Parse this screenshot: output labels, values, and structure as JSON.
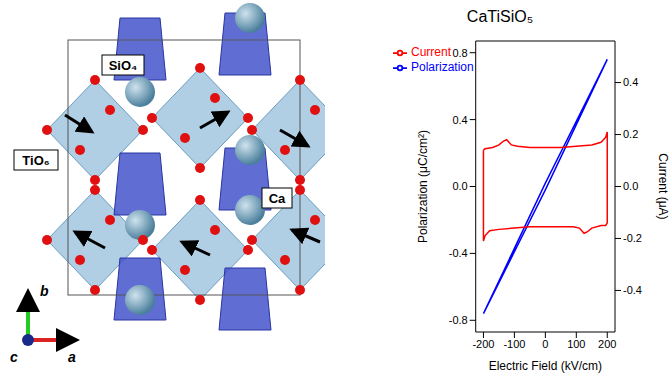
{
  "diagram": {
    "labels": {
      "polyhedra": [
        "SiO₄",
        "TiO₆"
      ],
      "atom": "Ca",
      "axes": [
        "a",
        "b",
        "c"
      ]
    }
  },
  "chart_data": {
    "type": "line",
    "title": "CaTiSiO₅",
    "xlabel": "Electric Field (kV/cm)",
    "ylabel": "Polarization (μC/cm²)",
    "y2label": "Current (μA)",
    "xlim": [
      -225,
      225
    ],
    "xticks": [
      -200,
      -100,
      0,
      100,
      200
    ],
    "ylim": [
      -0.87,
      0.87
    ],
    "yticks": [
      -0.8,
      -0.4,
      {
        "value": 0,
        "label": "0.0"
      },
      0.4,
      0.8
    ],
    "y2lim": [
      -0.56,
      0.56
    ],
    "y2ticks": [
      -0.4,
      -0.2,
      {
        "value": 0,
        "label": "0.0"
      },
      0.2,
      0.4
    ],
    "legend": "upper left",
    "series": [
      {
        "name": "Polarization",
        "color": "#0000ff",
        "x": [
          -200,
          -100,
          0,
          100,
          200,
          100,
          0,
          -100,
          -200
        ],
        "values": [
          -0.76,
          -0.39,
          -0.02,
          0.37,
          0.76,
          0.39,
          0.02,
          -0.37,
          -0.76
        ]
      },
      {
        "name": "Current",
        "color": "#ff0000",
        "axis": "y2",
        "x": [
          -200,
          -195,
          -170,
          -150,
          -135,
          -125,
          -110,
          -90,
          -50,
          0,
          50,
          100,
          150,
          180,
          195,
          200,
          200,
          195,
          180,
          150,
          135,
          125,
          110,
          90,
          50,
          0,
          -50,
          -100,
          -150,
          -180,
          -195,
          -200,
          -200
        ],
        "values": [
          0.14,
          0.145,
          0.15,
          0.16,
          0.175,
          0.18,
          0.16,
          0.155,
          0.15,
          0.15,
          0.15,
          0.155,
          0.16,
          0.17,
          0.19,
          0.21,
          -0.14,
          -0.15,
          -0.15,
          -0.16,
          -0.175,
          -0.18,
          -0.16,
          -0.155,
          -0.155,
          -0.155,
          -0.155,
          -0.16,
          -0.165,
          -0.17,
          -0.19,
          -0.21,
          0.14
        ]
      }
    ]
  }
}
